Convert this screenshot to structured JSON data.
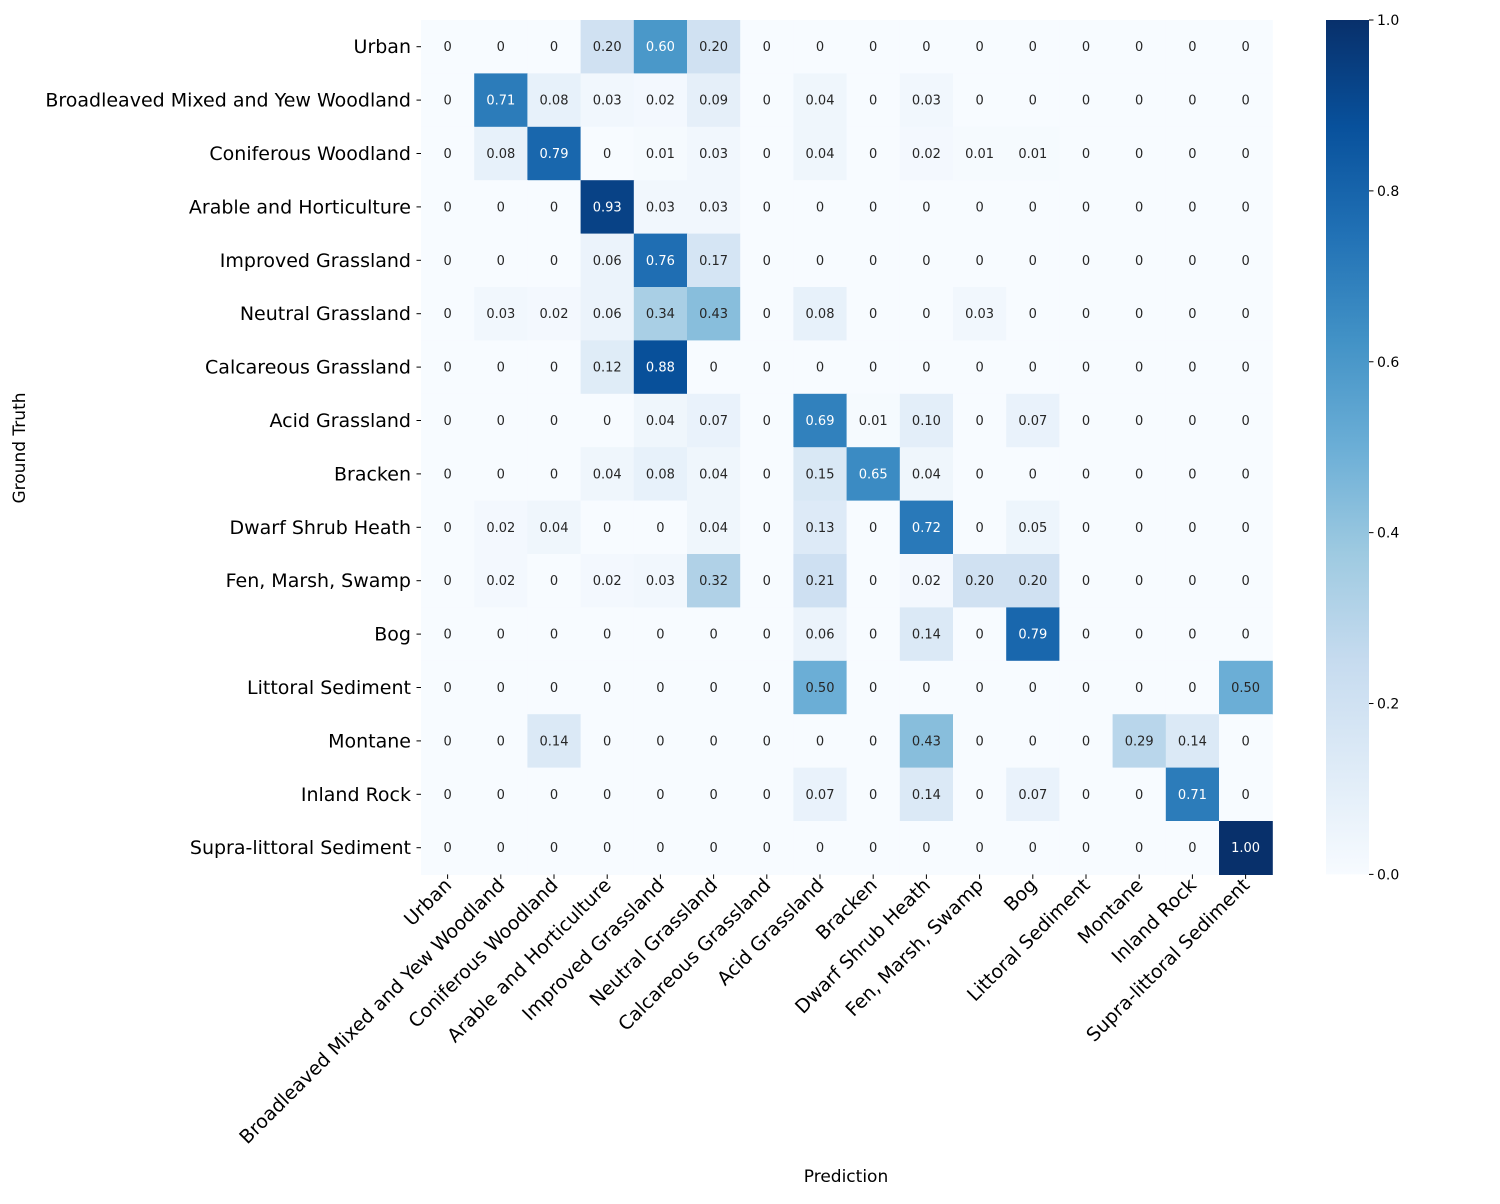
{
  "chart_data": {
    "type": "heatmap",
    "title": "",
    "xlabel": "Prediction",
    "ylabel": "Ground Truth",
    "row_labels": [
      "Urban",
      "Broadleaved Mixed and Yew Woodland",
      "Coniferous Woodland",
      "Arable and Horticulture",
      "Improved Grassland",
      "Neutral Grassland",
      "Calcareous Grassland",
      "Acid Grassland",
      "Bracken",
      "Dwarf Shrub Heath",
      "Fen, Marsh, Swamp",
      "Bog",
      "Littoral Sediment",
      "Montane",
      "Inland Rock",
      "Supra-littoral Sediment"
    ],
    "col_labels": [
      "Urban",
      "Broadleaved Mixed and Yew Woodland",
      "Coniferous Woodland",
      "Arable and Horticulture",
      "Improved Grassland",
      "Neutral Grassland",
      "Calcareous Grassland",
      "Acid Grassland",
      "Bracken",
      "Dwarf Shrub Heath",
      "Fen, Marsh, Swamp",
      "Bog",
      "Littoral Sediment",
      "Montane",
      "Inland Rock",
      "Supra-littoral Sediment"
    ],
    "values": [
      [
        0,
        0,
        0,
        0.2,
        0.6,
        0.2,
        0,
        0,
        0,
        0,
        0,
        0,
        0,
        0,
        0,
        0
      ],
      [
        0,
        0.71,
        0.08,
        0.03,
        0.02,
        0.09,
        0,
        0.04,
        0,
        0.03,
        0,
        0,
        0,
        0,
        0,
        0
      ],
      [
        0,
        0.08,
        0.79,
        0,
        0.01,
        0.03,
        0,
        0.04,
        0,
        0.02,
        0.01,
        0.01,
        0,
        0,
        0,
        0
      ],
      [
        0,
        0,
        0,
        0.93,
        0.03,
        0.03,
        0,
        0,
        0,
        0,
        0,
        0,
        0,
        0,
        0,
        0
      ],
      [
        0,
        0,
        0,
        0.06,
        0.76,
        0.17,
        0,
        0,
        0,
        0,
        0,
        0,
        0,
        0,
        0,
        0
      ],
      [
        0,
        0.03,
        0.02,
        0.06,
        0.34,
        0.43,
        0,
        0.08,
        0,
        0,
        0.03,
        0,
        0,
        0,
        0,
        0
      ],
      [
        0,
        0,
        0,
        0.12,
        0.88,
        0,
        0,
        0,
        0,
        0,
        0,
        0,
        0,
        0,
        0,
        0
      ],
      [
        0,
        0,
        0,
        0,
        0.04,
        0.07,
        0,
        0.69,
        0.01,
        0.1,
        0,
        0.07,
        0,
        0,
        0,
        0
      ],
      [
        0,
        0,
        0,
        0.04,
        0.08,
        0.04,
        0,
        0.15,
        0.65,
        0.04,
        0,
        0,
        0,
        0,
        0,
        0
      ],
      [
        0,
        0.02,
        0.04,
        0,
        0,
        0.04,
        0,
        0.13,
        0,
        0.72,
        0,
        0.05,
        0,
        0,
        0,
        0
      ],
      [
        0,
        0.02,
        0,
        0.02,
        0.03,
        0.32,
        0,
        0.21,
        0,
        0.02,
        0.2,
        0.2,
        0,
        0,
        0,
        0
      ],
      [
        0,
        0,
        0,
        0,
        0,
        0,
        0,
        0.06,
        0,
        0.14,
        0,
        0.79,
        0,
        0,
        0,
        0
      ],
      [
        0,
        0,
        0,
        0,
        0,
        0,
        0,
        0.5,
        0,
        0,
        0,
        0,
        0,
        0,
        0,
        0.5
      ],
      [
        0,
        0,
        0.14,
        0,
        0,
        0,
        0,
        0,
        0,
        0.43,
        0,
        0,
        0,
        0.29,
        0.14,
        0
      ],
      [
        0,
        0,
        0,
        0,
        0,
        0,
        0,
        0.07,
        0,
        0.14,
        0,
        0.07,
        0,
        0,
        0.71,
        0
      ],
      [
        0,
        0,
        0,
        0,
        0,
        0,
        0,
        0,
        0,
        0,
        0,
        0,
        0,
        0,
        0,
        1.0
      ]
    ],
    "value_labels": [
      [
        "0",
        "0",
        "0",
        "0.20",
        "0.60",
        "0.20",
        "0",
        "0",
        "0",
        "0",
        "0",
        "0",
        "0",
        "0",
        "0",
        "0"
      ],
      [
        "0",
        "0.71",
        "0.08",
        "0.03",
        "0.02",
        "0.09",
        "0",
        "0.04",
        "0",
        "0.03",
        "0",
        "0",
        "0",
        "0",
        "0",
        "0"
      ],
      [
        "0",
        "0.08",
        "0.79",
        "0",
        "0.01",
        "0.03",
        "0",
        "0.04",
        "0",
        "0.02",
        "0.01",
        "0.01",
        "0",
        "0",
        "0",
        "0"
      ],
      [
        "0",
        "0",
        "0",
        "0.93",
        "0.03",
        "0.03",
        "0",
        "0",
        "0",
        "0",
        "0",
        "0",
        "0",
        "0",
        "0",
        "0"
      ],
      [
        "0",
        "0",
        "0",
        "0.06",
        "0.76",
        "0.17",
        "0",
        "0",
        "0",
        "0",
        "0",
        "0",
        "0",
        "0",
        "0",
        "0"
      ],
      [
        "0",
        "0.03",
        "0.02",
        "0.06",
        "0.34",
        "0.43",
        "0",
        "0.08",
        "0",
        "0",
        "0.03",
        "0",
        "0",
        "0",
        "0",
        "0"
      ],
      [
        "0",
        "0",
        "0",
        "0.12",
        "0.88",
        "0",
        "0",
        "0",
        "0",
        "0",
        "0",
        "0",
        "0",
        "0",
        "0",
        "0"
      ],
      [
        "0",
        "0",
        "0",
        "0",
        "0.04",
        "0.07",
        "0",
        "0.69",
        "0.01",
        "0.10",
        "0",
        "0.07",
        "0",
        "0",
        "0",
        "0"
      ],
      [
        "0",
        "0",
        "0",
        "0.04",
        "0.08",
        "0.04",
        "0",
        "0.15",
        "0.65",
        "0.04",
        "0",
        "0",
        "0",
        "0",
        "0",
        "0"
      ],
      [
        "0",
        "0.02",
        "0.04",
        "0",
        "0",
        "0.04",
        "0",
        "0.13",
        "0",
        "0.72",
        "0",
        "0.05",
        "0",
        "0",
        "0",
        "0"
      ],
      [
        "0",
        "0.02",
        "0",
        "0.02",
        "0.03",
        "0.32",
        "0",
        "0.21",
        "0",
        "0.02",
        "0.20",
        "0.20",
        "0",
        "0",
        "0",
        "0"
      ],
      [
        "0",
        "0",
        "0",
        "0",
        "0",
        "0",
        "0",
        "0.06",
        "0",
        "0.14",
        "0",
        "0.79",
        "0",
        "0",
        "0",
        "0"
      ],
      [
        "0",
        "0",
        "0",
        "0",
        "0",
        "0",
        "0",
        "0.50",
        "0",
        "0",
        "0",
        "0",
        "0",
        "0",
        "0",
        "0.50"
      ],
      [
        "0",
        "0",
        "0.14",
        "0",
        "0",
        "0",
        "0",
        "0",
        "0",
        "0.43",
        "0",
        "0",
        "0",
        "0.29",
        "0.14",
        "0"
      ],
      [
        "0",
        "0",
        "0",
        "0",
        "0",
        "0",
        "0",
        "0.07",
        "0",
        "0.14",
        "0",
        "0.07",
        "0",
        "0",
        "0.71",
        "0"
      ],
      [
        "0",
        "0",
        "0",
        "0",
        "0",
        "0",
        "0",
        "0",
        "0",
        "0",
        "0",
        "0",
        "0",
        "0",
        "0",
        "1.00"
      ]
    ],
    "colorbar": {
      "range": [
        0.0,
        1.0
      ],
      "ticks": [
        "0.0",
        "0.2",
        "0.4",
        "0.6",
        "0.8",
        "1.0"
      ],
      "colormap": "Blues"
    },
    "colormap_stops": [
      "#f7fbff",
      "#deebf7",
      "#c6dbef",
      "#9ecae1",
      "#6baed6",
      "#4292c6",
      "#2171b5",
      "#08519c",
      "#08306b"
    ]
  }
}
